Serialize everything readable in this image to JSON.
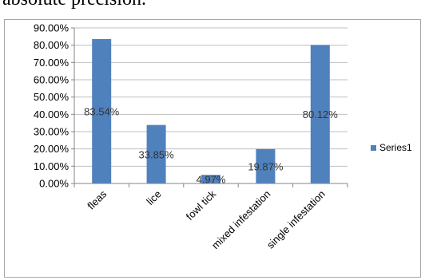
{
  "header": {
    "text": "absolute  precision."
  },
  "colors": {
    "bar": "#4f81bd",
    "grid": "#bfbfbf",
    "axis": "#868686"
  },
  "chart_data": {
    "type": "bar",
    "categories": [
      "fleas",
      "lice",
      "fowl tick",
      "mixed infestation",
      "single infestation"
    ],
    "series": [
      {
        "name": "Series1",
        "values": [
          83.54,
          33.85,
          4.97,
          19.87,
          80.12
        ]
      }
    ],
    "data_labels": [
      "83.54%",
      "33.85%",
      "4.97%",
      "19.87%",
      "80.12%"
    ],
    "y_ticks": [
      "0.00%",
      "10.00%",
      "20.00%",
      "30.00%",
      "40.00%",
      "50.00%",
      "60.00%",
      "70.00%",
      "80.00%",
      "90.00%"
    ],
    "ylim": [
      0,
      90
    ],
    "grid": true,
    "legend": "right",
    "title": "",
    "xlabel": "",
    "ylabel": ""
  }
}
